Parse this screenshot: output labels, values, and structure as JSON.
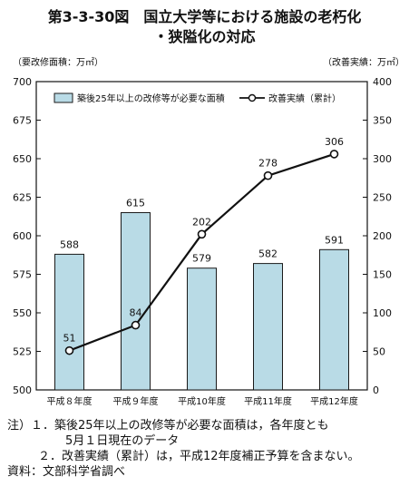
{
  "title_line1": "第3-3-30図　国立大学等における施設の老朽化",
  "title_line2": "・狭隘化の対応",
  "notes": {
    "note1_prefix": "注）１．",
    "note1_line1": "築後25年以上の改修等が必要な面積は，各年度とも",
    "note1_line2": "5月１日現在のデータ",
    "note2_prefix": "２．",
    "note2_text": "改善実績（累計）は，平成12年度補正予算を含まない。",
    "source": "資料：文部科学省調べ"
  },
  "chart_data": {
    "type": "bar+line",
    "categories": [
      "平成８年度",
      "平成９年度",
      "平成10年度",
      "平成11年度",
      "平成12年度"
    ],
    "ylabel_left": "（要改修面積：万㎡）",
    "ylabel_right": "（改善実績：万㎡）",
    "left_axis": {
      "min": 500,
      "max": 700,
      "ticks": [
        "500",
        "525",
        "550",
        "575",
        "600",
        "625",
        "650",
        "675",
        "700"
      ]
    },
    "right_axis": {
      "min": 0,
      "max": 400,
      "ticks": [
        "0",
        "50",
        "100",
        "150",
        "200",
        "250",
        "300",
        "350",
        "400"
      ]
    },
    "series": [
      {
        "name": "築後25年以上の改修等が必要な面積",
        "type": "bar",
        "axis": "left",
        "values": [
          588,
          615,
          579,
          582,
          591
        ],
        "labels": [
          "588",
          "615",
          "579",
          "582",
          "591"
        ]
      },
      {
        "name": "改善実績（累計）",
        "type": "line",
        "axis": "right",
        "values": [
          51,
          84,
          202,
          278,
          306
        ],
        "labels": [
          "51",
          "84",
          "202",
          "278",
          "306"
        ]
      }
    ],
    "colors": {
      "bar_fill": "#b9dbe6",
      "bar_stroke": "#1a1a1a",
      "line": "#111111",
      "marker_fill": "#ffffff"
    },
    "legend_position": "top",
    "grid": false
  }
}
